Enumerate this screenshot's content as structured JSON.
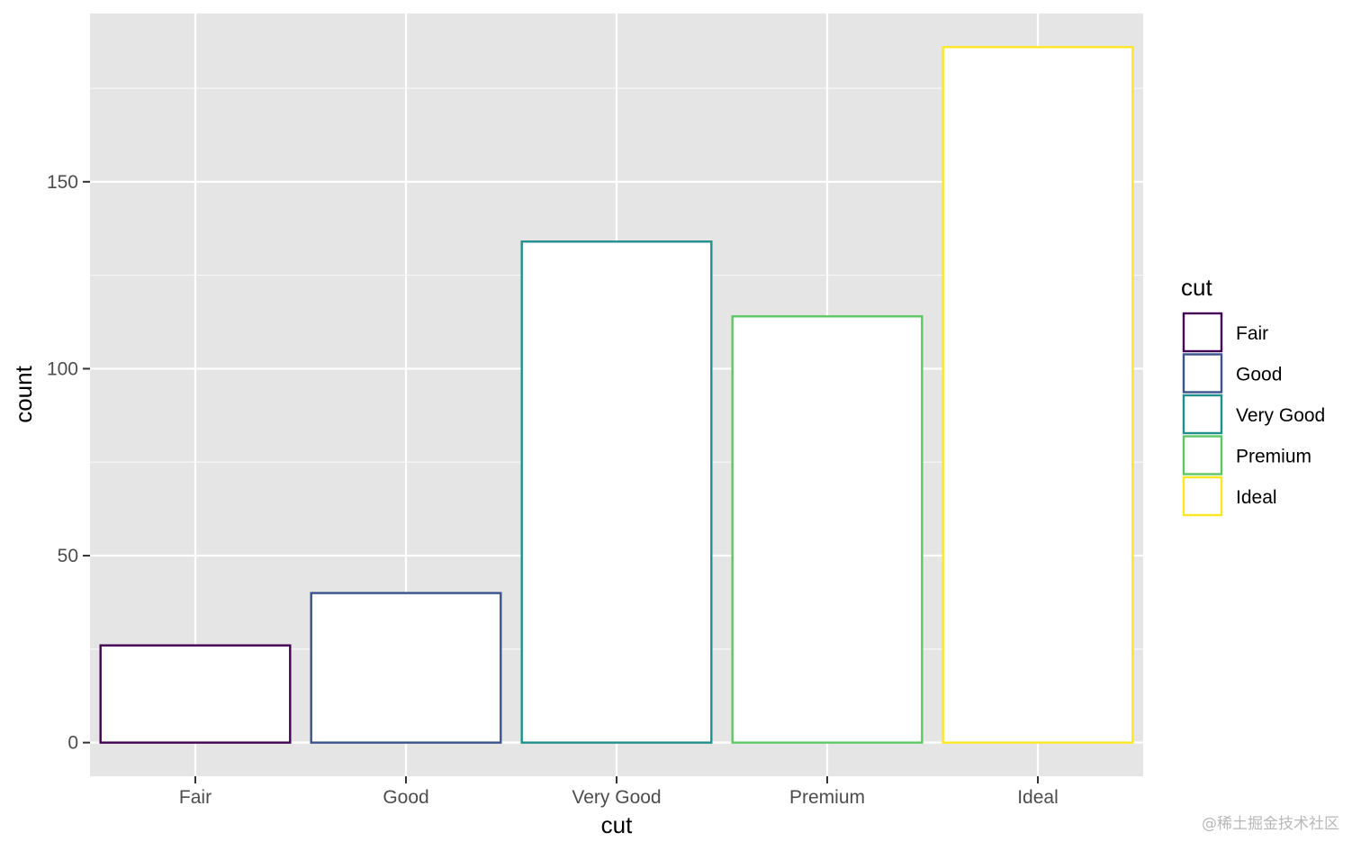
{
  "chart_data": {
    "type": "bar",
    "categories": [
      "Fair",
      "Good",
      "Very Good",
      "Premium",
      "Ideal"
    ],
    "values": [
      26,
      40,
      134,
      114,
      186
    ],
    "colors": [
      "#440154",
      "#3B528B",
      "#21908C",
      "#5DC863",
      "#FDE725"
    ],
    "bar_fill": "#ffffff",
    "panel_background": "#E5E5E5",
    "grid": true,
    "xlabel": "cut",
    "ylabel": "count",
    "ylim": [
      -9,
      195
    ],
    "yticks": [
      0,
      50,
      100,
      150
    ],
    "legend": {
      "title": "cut",
      "position": "right",
      "entries": [
        "Fair",
        "Good",
        "Very Good",
        "Premium",
        "Ideal"
      ]
    }
  },
  "watermark": "@稀土掘金技术社区"
}
